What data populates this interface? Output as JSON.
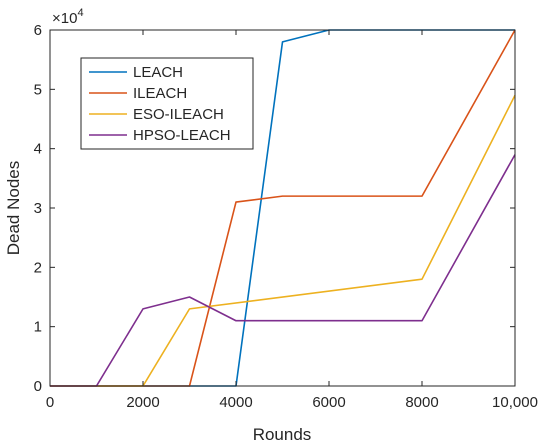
{
  "chart_data": {
    "type": "line",
    "title": "",
    "xlabel": "Rounds",
    "ylabel": "Dead Nodes",
    "xlim": [
      0,
      10000
    ],
    "ylim": [
      0,
      6
    ],
    "y_multiplier_base": "×10",
    "y_multiplier_exp": "4",
    "grid": false,
    "legend_position": "top-left",
    "x_ticks": [
      0,
      2000,
      4000,
      6000,
      8000,
      10000
    ],
    "x_tick_labels": [
      "0",
      "2000",
      "4000",
      "6000",
      "8000",
      "10,000"
    ],
    "y_ticks": [
      0,
      1,
      2,
      3,
      4,
      5,
      6
    ],
    "y_tick_labels": [
      "0",
      "1",
      "2",
      "3",
      "4",
      "5",
      "6"
    ],
    "series": [
      {
        "name": "LEACH",
        "color": "#0072BD",
        "x": [
          0,
          4000,
          5000,
          6000,
          8000,
          10000
        ],
        "y": [
          0,
          0,
          5.8,
          6,
          6,
          6
        ]
      },
      {
        "name": "ILEACH",
        "color": "#D95319",
        "x": [
          0,
          3000,
          4000,
          5000,
          8000,
          10000
        ],
        "y": [
          0,
          0,
          3.1,
          3.2,
          3.2,
          6
        ]
      },
      {
        "name": "ESO-ILEACH",
        "color": "#EDB120",
        "x": [
          0,
          2000,
          3000,
          8000,
          10000
        ],
        "y": [
          0,
          0,
          1.3,
          1.8,
          4.9
        ]
      },
      {
        "name": "HPSO-LEACH",
        "color": "#7E2F8E",
        "x": [
          0,
          1000,
          2000,
          3000,
          4000,
          8000,
          10000
        ],
        "y": [
          0,
          0,
          1.3,
          1.5,
          1.1,
          1.1,
          3.9
        ]
      }
    ]
  }
}
